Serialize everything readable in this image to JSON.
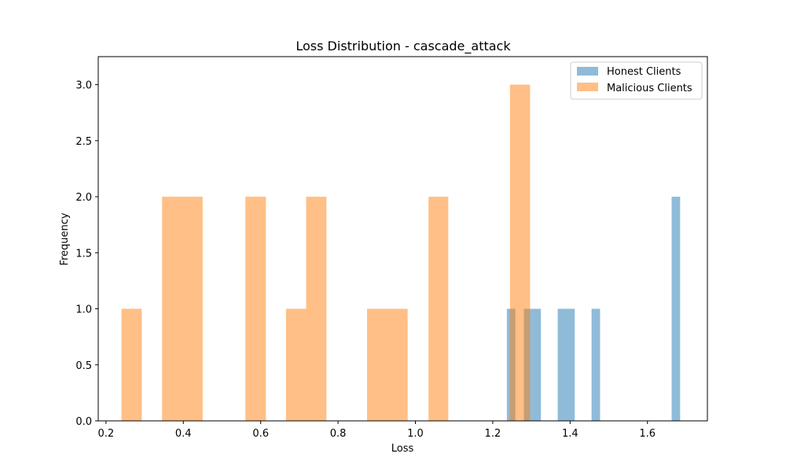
{
  "chart_data": {
    "type": "bar",
    "title": "Loss Distribution - cascade_attack",
    "xlabel": "Loss",
    "ylabel": "Frequency",
    "xlim": [
      0.18,
      1.755
    ],
    "ylim": [
      0,
      3.25
    ],
    "xticks": [
      "0.2",
      "0.4",
      "0.6",
      "0.8",
      "1.0",
      "1.2",
      "1.4",
      "1.6"
    ],
    "yticks": [
      "0.0",
      "0.5",
      "1.0",
      "1.5",
      "2.0",
      "2.5",
      "3.0"
    ],
    "legend_position": "top-right",
    "series": [
      {
        "name": "Honest Clients",
        "color": "#1f77b4",
        "opacity": 0.5,
        "bins": [
          {
            "x0": 1.2365,
            "x1": 1.2585,
            "value": 1
          },
          {
            "x0": 1.2805,
            "x1": 1.3025,
            "value": 1
          },
          {
            "x0": 1.3025,
            "x1": 1.3245,
            "value": 1
          },
          {
            "x0": 1.368,
            "x1": 1.39,
            "value": 1
          },
          {
            "x0": 1.39,
            "x1": 1.412,
            "value": 1
          },
          {
            "x0": 1.4555,
            "x1": 1.4775,
            "value": 1
          },
          {
            "x0": 1.6625,
            "x1": 1.6845,
            "value": 2
          }
        ]
      },
      {
        "name": "Malicious Clients",
        "color": "#ff7f0e",
        "opacity": 0.5,
        "bins": [
          {
            "x0": 0.24,
            "x1": 0.2925,
            "value": 1
          },
          {
            "x0": 0.345,
            "x1": 0.45,
            "value": 2
          },
          {
            "x0": 0.5605,
            "x1": 0.6135,
            "value": 2
          },
          {
            "x0": 0.6655,
            "x1": 0.7175,
            "value": 1
          },
          {
            "x0": 0.7175,
            "x1": 0.77,
            "value": 2
          },
          {
            "x0": 0.875,
            "x1": 0.98,
            "value": 1
          },
          {
            "x0": 1.034,
            "x1": 1.085,
            "value": 2
          },
          {
            "x0": 1.2445,
            "x1": 1.2965,
            "value": 3
          }
        ]
      }
    ]
  }
}
